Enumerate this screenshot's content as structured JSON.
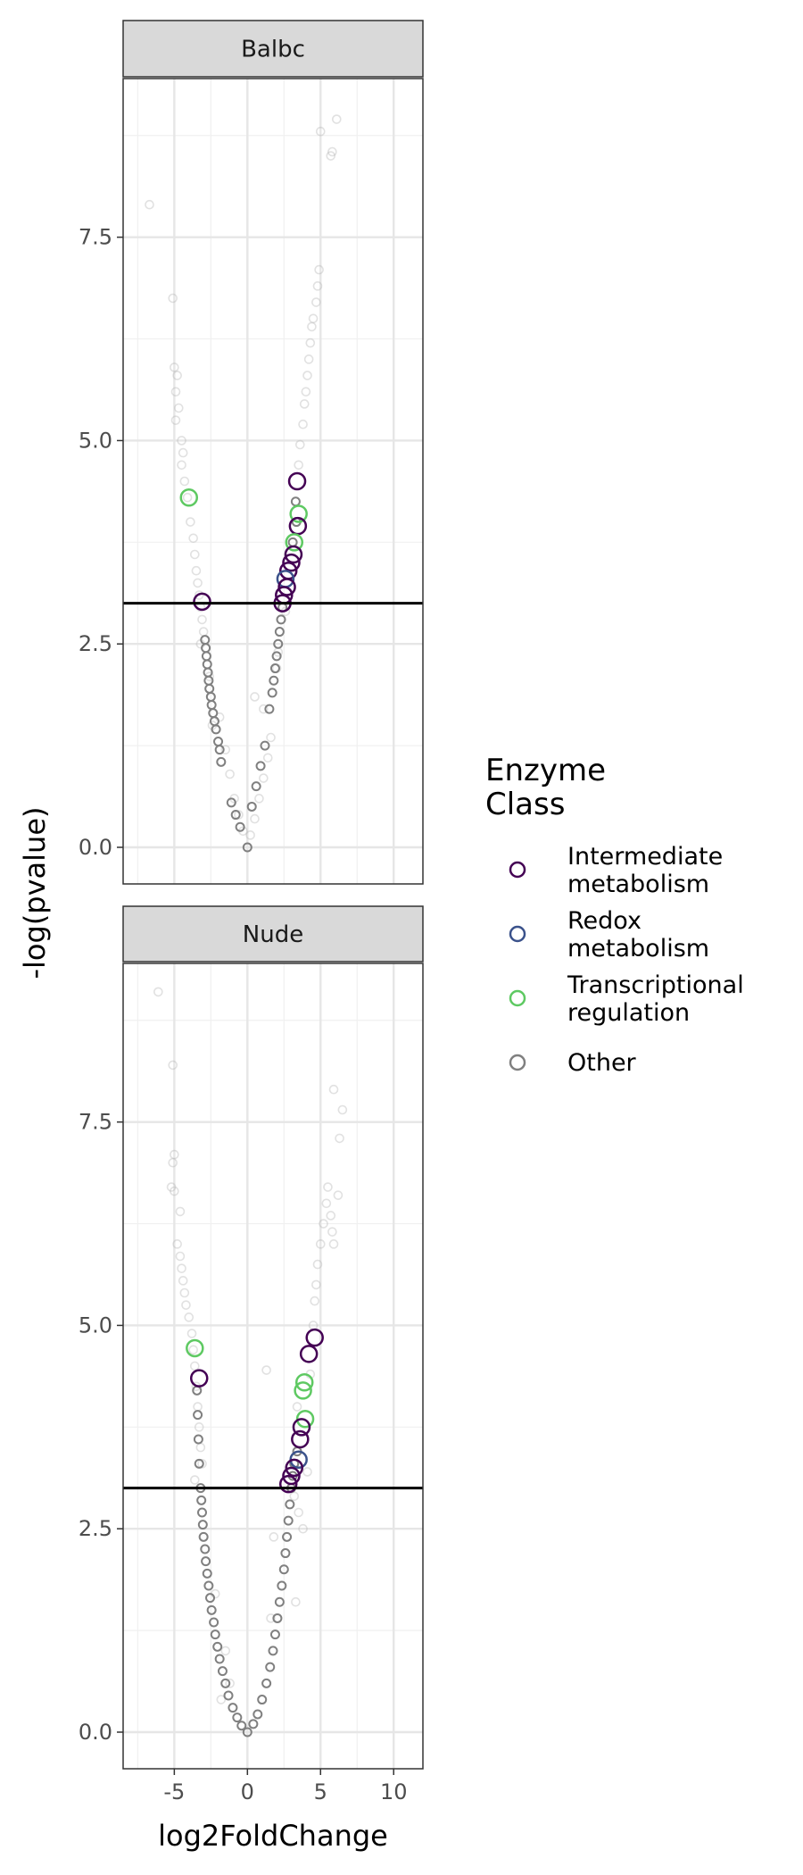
{
  "chart_data": {
    "type": "scatter",
    "xlabel": "log2FoldChange",
    "ylabel": "-log(pvalue)",
    "xlim": [
      -8.5,
      12
    ],
    "ylim": [
      -0.45,
      9.45
    ],
    "x_ticks": [
      -5,
      0,
      5,
      10
    ],
    "x_tick_labels": [
      "-5",
      "0",
      "5",
      "10"
    ],
    "y_ticks": [
      0,
      2.5,
      5,
      7.5
    ],
    "y_tick_labels": [
      "0.0",
      "2.5",
      "5.0",
      "7.5"
    ],
    "threshold_y": 3,
    "grid": true,
    "legend": {
      "title_lines": [
        "Enzyme",
        "Class"
      ],
      "placement": "right",
      "entries": [
        {
          "key": "intermediate",
          "lines": [
            "Intermediate",
            "metabolism"
          ],
          "color": "#440154"
        },
        {
          "key": "redox",
          "lines": [
            "Redox",
            "metabolism"
          ],
          "color": "#3b528b"
        },
        {
          "key": "transcriptional",
          "lines": [
            "Transcriptional",
            "regulation"
          ],
          "color": "#5ec962"
        },
        {
          "key": "other",
          "lines": [
            "Other"
          ],
          "color": "#808080"
        }
      ]
    },
    "panels": [
      {
        "strip": "Balbc",
        "faded_points": [
          [
            -6.7,
            7.9
          ],
          [
            -5.1,
            6.75
          ],
          [
            -5.0,
            5.9
          ],
          [
            -4.8,
            5.8
          ],
          [
            -4.9,
            5.6
          ],
          [
            -4.7,
            5.4
          ],
          [
            -4.9,
            5.25
          ],
          [
            -4.5,
            5.0
          ],
          [
            -4.4,
            4.85
          ],
          [
            -4.5,
            4.7
          ],
          [
            -4.3,
            4.5
          ],
          [
            -4.1,
            4.3
          ],
          [
            -3.9,
            4.0
          ],
          [
            -3.7,
            3.8
          ],
          [
            -3.6,
            3.6
          ],
          [
            -3.5,
            3.4
          ],
          [
            -3.4,
            3.25
          ],
          [
            -3.3,
            3.1
          ],
          [
            -3.2,
            2.95
          ],
          [
            -3.1,
            2.8
          ],
          [
            -3.0,
            2.65
          ],
          [
            -1.9,
            1.6
          ],
          [
            -1.5,
            1.2
          ],
          [
            -1.2,
            0.9
          ],
          [
            -0.9,
            0.6
          ],
          [
            -0.6,
            0.4
          ],
          [
            -0.3,
            0.2
          ],
          [
            0.2,
            0.15
          ],
          [
            0.5,
            0.35
          ],
          [
            0.8,
            0.6
          ],
          [
            1.1,
            0.85
          ],
          [
            1.4,
            1.1
          ],
          [
            1.6,
            1.35
          ],
          [
            0.5,
            1.85
          ],
          [
            1.1,
            1.7
          ],
          [
            2.6,
            2.9
          ],
          [
            3.5,
            4.7
          ],
          [
            3.6,
            4.95
          ],
          [
            3.8,
            5.2
          ],
          [
            3.9,
            5.45
          ],
          [
            4.0,
            5.6
          ],
          [
            4.1,
            5.8
          ],
          [
            4.2,
            6.0
          ],
          [
            4.3,
            6.2
          ],
          [
            4.4,
            6.4
          ],
          [
            4.7,
            6.7
          ],
          [
            4.8,
            6.9
          ],
          [
            4.9,
            7.1
          ],
          [
            5.0,
            8.8
          ],
          [
            5.7,
            8.5
          ],
          [
            5.8,
            8.55
          ],
          [
            6.1,
            8.95
          ],
          [
            -3.2,
            2.5
          ],
          [
            -2.6,
            2.1
          ],
          [
            -2.4,
            1.5
          ],
          [
            2.0,
            2.2
          ],
          [
            2.1,
            2.4
          ],
          [
            4.5,
            6.5
          ]
        ],
        "other_points": [
          [
            -2.9,
            2.55
          ],
          [
            -2.85,
            2.45
          ],
          [
            -2.8,
            2.35
          ],
          [
            -2.75,
            2.25
          ],
          [
            -2.7,
            2.15
          ],
          [
            -2.65,
            2.05
          ],
          [
            -2.6,
            1.95
          ],
          [
            -2.5,
            1.85
          ],
          [
            -2.45,
            1.75
          ],
          [
            -2.35,
            1.65
          ],
          [
            -2.25,
            1.55
          ],
          [
            -2.15,
            1.45
          ],
          [
            -2.0,
            1.3
          ],
          [
            -1.9,
            1.2
          ],
          [
            -1.8,
            1.05
          ],
          [
            -1.1,
            0.55
          ],
          [
            -0.8,
            0.4
          ],
          [
            -0.5,
            0.25
          ],
          [
            0.0,
            0.0
          ],
          [
            0.3,
            0.5
          ],
          [
            0.6,
            0.75
          ],
          [
            0.9,
            1.0
          ],
          [
            1.2,
            1.25
          ],
          [
            1.5,
            1.7
          ],
          [
            1.7,
            1.9
          ],
          [
            1.8,
            2.05
          ],
          [
            1.9,
            2.2
          ],
          [
            2.0,
            2.35
          ],
          [
            2.1,
            2.5
          ],
          [
            2.2,
            2.65
          ],
          [
            2.3,
            2.8
          ],
          [
            2.4,
            2.95
          ],
          [
            3.3,
            4.25
          ],
          [
            3.1,
            3.75
          ],
          [
            3.35,
            4.0
          ]
        ],
        "highlight_points": [
          {
            "x": -3.1,
            "y": 3.02,
            "cls": "intermediate"
          },
          {
            "x": -4.0,
            "y": 4.3,
            "cls": "transcriptional"
          },
          {
            "x": 3.4,
            "y": 4.5,
            "cls": "intermediate"
          },
          {
            "x": 3.5,
            "y": 4.1,
            "cls": "transcriptional"
          },
          {
            "x": 3.45,
            "y": 3.95,
            "cls": "intermediate"
          },
          {
            "x": 3.2,
            "y": 3.75,
            "cls": "transcriptional"
          },
          {
            "x": 3.15,
            "y": 3.6,
            "cls": "intermediate"
          },
          {
            "x": 3.0,
            "y": 3.5,
            "cls": "intermediate"
          },
          {
            "x": 2.8,
            "y": 3.4,
            "cls": "intermediate"
          },
          {
            "x": 2.6,
            "y": 3.3,
            "cls": "redox"
          },
          {
            "x": 2.7,
            "y": 3.2,
            "cls": "intermediate"
          },
          {
            "x": 2.5,
            "y": 3.1,
            "cls": "intermediate"
          },
          {
            "x": 2.4,
            "y": 3.0,
            "cls": "intermediate"
          }
        ]
      },
      {
        "strip": "Nude",
        "faded_points": [
          [
            -6.1,
            9.1
          ],
          [
            -5.1,
            8.2
          ],
          [
            -5.0,
            7.1
          ],
          [
            -5.1,
            7.0
          ],
          [
            -5.2,
            6.7
          ],
          [
            -5.0,
            6.65
          ],
          [
            -4.6,
            6.4
          ],
          [
            -4.8,
            6.0
          ],
          [
            -4.6,
            5.85
          ],
          [
            -4.5,
            5.7
          ],
          [
            -4.4,
            5.55
          ],
          [
            -4.3,
            5.4
          ],
          [
            -4.2,
            5.25
          ],
          [
            -4.0,
            5.1
          ],
          [
            -3.8,
            4.9
          ],
          [
            -3.7,
            4.7
          ],
          [
            -3.6,
            4.5
          ],
          [
            -3.5,
            4.25
          ],
          [
            -3.4,
            4.0
          ],
          [
            -3.3,
            3.75
          ],
          [
            -3.2,
            3.5
          ],
          [
            -3.1,
            3.3
          ],
          [
            -3.6,
            3.1
          ],
          [
            -1.5,
            1.0
          ],
          [
            -1.2,
            0.6
          ],
          [
            1.6,
            1.4
          ],
          [
            1.8,
            2.4
          ],
          [
            1.3,
            4.45
          ],
          [
            3.2,
            2.9
          ],
          [
            3.5,
            2.7
          ],
          [
            3.3,
            1.6
          ],
          [
            3.4,
            4.0
          ],
          [
            4.5,
            5.0
          ],
          [
            4.6,
            5.3
          ],
          [
            4.7,
            5.5
          ],
          [
            4.8,
            5.75
          ],
          [
            5.0,
            6.0
          ],
          [
            5.2,
            6.25
          ],
          [
            5.4,
            6.5
          ],
          [
            5.5,
            6.7
          ],
          [
            5.7,
            6.35
          ],
          [
            5.8,
            6.15
          ],
          [
            5.9,
            6.0
          ],
          [
            6.2,
            6.6
          ],
          [
            6.3,
            7.3
          ],
          [
            6.5,
            7.65
          ],
          [
            5.9,
            7.9
          ],
          [
            4.3,
            4.4
          ],
          [
            4.1,
            3.2
          ],
          [
            3.8,
            2.5
          ],
          [
            -2.2,
            1.7
          ],
          [
            -1.8,
            0.4
          ]
        ],
        "other_points": [
          [
            -3.2,
            3.0
          ],
          [
            -3.15,
            2.85
          ],
          [
            -3.1,
            2.7
          ],
          [
            -3.05,
            2.55
          ],
          [
            -3.0,
            2.4
          ],
          [
            -2.9,
            2.25
          ],
          [
            -2.85,
            2.1
          ],
          [
            -2.75,
            1.95
          ],
          [
            -2.65,
            1.8
          ],
          [
            -2.55,
            1.65
          ],
          [
            -2.45,
            1.5
          ],
          [
            -2.3,
            1.35
          ],
          [
            -2.2,
            1.2
          ],
          [
            -2.05,
            1.05
          ],
          [
            -1.9,
            0.9
          ],
          [
            -1.7,
            0.75
          ],
          [
            -1.5,
            0.6
          ],
          [
            -1.3,
            0.45
          ],
          [
            -1.0,
            0.3
          ],
          [
            -0.7,
            0.18
          ],
          [
            -0.4,
            0.08
          ],
          [
            0.0,
            0.0
          ],
          [
            0.4,
            0.1
          ],
          [
            0.7,
            0.22
          ],
          [
            1.0,
            0.4
          ],
          [
            1.3,
            0.6
          ],
          [
            1.55,
            0.8
          ],
          [
            1.75,
            1.0
          ],
          [
            1.9,
            1.2
          ],
          [
            2.05,
            1.4
          ],
          [
            2.2,
            1.6
          ],
          [
            2.35,
            1.8
          ],
          [
            2.5,
            2.0
          ],
          [
            2.6,
            2.2
          ],
          [
            2.7,
            2.4
          ],
          [
            2.8,
            2.6
          ],
          [
            2.9,
            2.8
          ],
          [
            -3.3,
            3.3
          ],
          [
            -3.35,
            3.6
          ],
          [
            -3.4,
            3.9
          ],
          [
            -3.45,
            4.2
          ],
          [
            3.0,
            3.0
          ],
          [
            3.1,
            3.15
          ],
          [
            3.2,
            3.3
          ],
          [
            3.4,
            3.45
          ]
        ],
        "highlight_points": [
          {
            "x": -3.6,
            "y": 4.72,
            "cls": "transcriptional"
          },
          {
            "x": -3.3,
            "y": 4.35,
            "cls": "intermediate"
          },
          {
            "x": 4.6,
            "y": 4.85,
            "cls": "intermediate"
          },
          {
            "x": 4.2,
            "y": 4.65,
            "cls": "intermediate"
          },
          {
            "x": 3.9,
            "y": 4.3,
            "cls": "transcriptional"
          },
          {
            "x": 3.8,
            "y": 4.2,
            "cls": "transcriptional"
          },
          {
            "x": 3.95,
            "y": 3.85,
            "cls": "transcriptional"
          },
          {
            "x": 3.7,
            "y": 3.75,
            "cls": "intermediate"
          },
          {
            "x": 3.6,
            "y": 3.6,
            "cls": "intermediate"
          },
          {
            "x": 3.5,
            "y": 3.35,
            "cls": "redox"
          },
          {
            "x": 3.2,
            "y": 3.25,
            "cls": "intermediate"
          },
          {
            "x": 3.0,
            "y": 3.15,
            "cls": "intermediate"
          },
          {
            "x": 2.8,
            "y": 3.05,
            "cls": "intermediate"
          }
        ]
      }
    ]
  }
}
